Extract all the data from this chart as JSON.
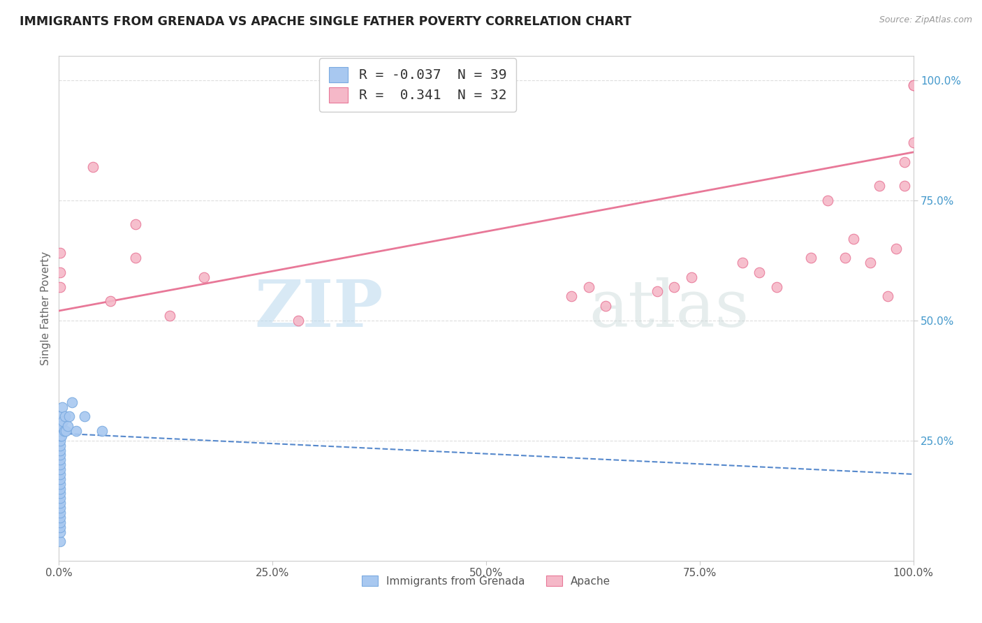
{
  "title": "IMMIGRANTS FROM GRENADA VS APACHE SINGLE FATHER POVERTY CORRELATION CHART",
  "source": "Source: ZipAtlas.com",
  "ylabel": "Single Father Poverty",
  "watermark_zip": "ZIP",
  "watermark_atlas": "atlas",
  "legend_r1_label": "R = ",
  "legend_r1_val": "-0.037",
  "legend_n1": "N = 39",
  "legend_r2_label": "R =  ",
  "legend_r2_val": "0.341",
  "legend_n2": "N = 32",
  "series1_name": "Immigrants from Grenada",
  "series2_name": "Apache",
  "series1_color": "#a8c8f0",
  "series2_color": "#f5b8c8",
  "series1_edge": "#7aaae0",
  "series2_edge": "#e87898",
  "trendline1_color": "#5588cc",
  "trendline2_color": "#e87898",
  "background_color": "#ffffff",
  "grid_color": "#dddddd",
  "xlim": [
    0.0,
    1.0
  ],
  "ylim": [
    0.0,
    1.05
  ],
  "xtick_labels": [
    "0.0%",
    "25.0%",
    "50.0%",
    "75.0%",
    "100.0%"
  ],
  "xtick_positions": [
    0.0,
    0.25,
    0.5,
    0.75,
    1.0
  ],
  "ytick_labels": [
    "25.0%",
    "50.0%",
    "75.0%",
    "100.0%"
  ],
  "ytick_positions": [
    0.25,
    0.5,
    0.75,
    1.0
  ],
  "series1_x": [
    0.001,
    0.001,
    0.001,
    0.001,
    0.001,
    0.001,
    0.001,
    0.001,
    0.001,
    0.001,
    0.001,
    0.001,
    0.001,
    0.001,
    0.001,
    0.001,
    0.001,
    0.001,
    0.001,
    0.001,
    0.001,
    0.001,
    0.001,
    0.001,
    0.001,
    0.001,
    0.003,
    0.003,
    0.004,
    0.005,
    0.006,
    0.007,
    0.008,
    0.01,
    0.012,
    0.015,
    0.02,
    0.03,
    0.05
  ],
  "series1_y": [
    0.04,
    0.06,
    0.07,
    0.08,
    0.09,
    0.1,
    0.11,
    0.12,
    0.13,
    0.14,
    0.15,
    0.16,
    0.17,
    0.18,
    0.19,
    0.2,
    0.21,
    0.22,
    0.23,
    0.24,
    0.25,
    0.26,
    0.27,
    0.28,
    0.29,
    0.3,
    0.26,
    0.28,
    0.32,
    0.29,
    0.27,
    0.3,
    0.27,
    0.28,
    0.3,
    0.33,
    0.27,
    0.3,
    0.27
  ],
  "series2_x": [
    0.001,
    0.001,
    0.001,
    0.04,
    0.06,
    0.09,
    0.09,
    0.13,
    0.17,
    0.28,
    0.6,
    0.62,
    0.64,
    0.7,
    0.72,
    0.74,
    0.8,
    0.82,
    0.84,
    0.88,
    0.9,
    0.92,
    0.93,
    0.95,
    0.96,
    0.97,
    0.98,
    0.99,
    0.99,
    1.0,
    1.0,
    1.0
  ],
  "series2_y": [
    0.57,
    0.6,
    0.64,
    0.82,
    0.54,
    0.63,
    0.7,
    0.51,
    0.59,
    0.5,
    0.55,
    0.57,
    0.53,
    0.56,
    0.57,
    0.59,
    0.62,
    0.6,
    0.57,
    0.63,
    0.75,
    0.63,
    0.67,
    0.62,
    0.78,
    0.55,
    0.65,
    0.78,
    0.83,
    0.99,
    0.99,
    0.87
  ],
  "trendline1_x0": 0.0,
  "trendline1_x1": 1.0,
  "trendline1_y0": 0.265,
  "trendline1_y1": 0.18,
  "trendline2_x0": 0.0,
  "trendline2_x1": 1.0,
  "trendline2_y0": 0.52,
  "trendline2_y1": 0.85
}
